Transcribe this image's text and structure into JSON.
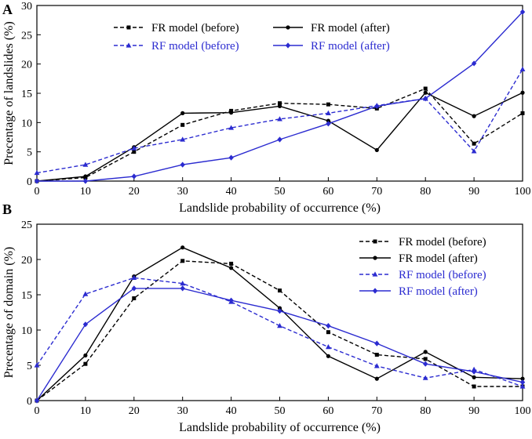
{
  "chart_data": [
    {
      "type": "line",
      "panel_label": "A",
      "title": "",
      "xlabel": "Landslide probability of occurrence (%)",
      "ylabel": "Precentage of landslides (%)",
      "xlim": [
        0,
        100
      ],
      "ylim": [
        0,
        30
      ],
      "xticks": [
        0,
        10,
        20,
        30,
        40,
        50,
        60,
        70,
        80,
        90,
        100
      ],
      "yticks": [
        0,
        5,
        10,
        15,
        20,
        25,
        30
      ],
      "grid": false,
      "legend_position": "top-center",
      "series": [
        {
          "name": "FR model (before)",
          "color": "#000000",
          "dashed": true,
          "marker": "square",
          "x": [
            0,
            10,
            20,
            30,
            40,
            50,
            60,
            70,
            80,
            90,
            100
          ],
          "values": [
            0,
            0.6,
            5.0,
            9.6,
            12.0,
            13.3,
            13.1,
            12.4,
            15.8,
            6.4,
            11.6
          ]
        },
        {
          "name": "FR model (after)",
          "color": "#000000",
          "dashed": false,
          "marker": "circle",
          "x": [
            0,
            10,
            20,
            30,
            40,
            50,
            60,
            70,
            80,
            90,
            100
          ],
          "values": [
            0,
            0.8,
            5.8,
            11.6,
            11.7,
            12.8,
            10.3,
            5.3,
            15.1,
            11.1,
            15.1
          ]
        },
        {
          "name": "RF model (before)",
          "color": "#2b2bd0",
          "dashed": true,
          "marker": "triangle",
          "x": [
            0,
            10,
            20,
            30,
            40,
            50,
            60,
            70,
            80,
            90,
            100
          ],
          "values": [
            1.4,
            2.8,
            5.6,
            7.1,
            9.1,
            10.6,
            11.6,
            12.9,
            14.1,
            5.1,
            19.1
          ]
        },
        {
          "name": "RF model (after)",
          "color": "#2b2bd0",
          "dashed": false,
          "marker": "diamond",
          "x": [
            0,
            10,
            20,
            30,
            40,
            50,
            60,
            70,
            80,
            90,
            100
          ],
          "values": [
            0,
            0,
            0.8,
            2.8,
            4.0,
            7.1,
            9.8,
            12.8,
            14.1,
            20.1,
            28.9
          ]
        }
      ]
    },
    {
      "type": "line",
      "panel_label": "B",
      "title": "",
      "xlabel": "Landslide probability of occurrence (%)",
      "ylabel": "Precentage of domain (%)",
      "xlim": [
        0,
        100
      ],
      "ylim": [
        0,
        25
      ],
      "xticks": [
        0,
        10,
        20,
        30,
        40,
        50,
        60,
        70,
        80,
        90,
        100
      ],
      "yticks": [
        0,
        5,
        10,
        15,
        20,
        25
      ],
      "grid": false,
      "legend_position": "top-right",
      "series": [
        {
          "name": "FR model (before)",
          "color": "#000000",
          "dashed": true,
          "marker": "square",
          "x": [
            0,
            10,
            20,
            30,
            40,
            50,
            60,
            70,
            80,
            90,
            100
          ],
          "values": [
            0,
            5.2,
            14.5,
            19.8,
            19.4,
            15.6,
            9.7,
            6.5,
            5.9,
            2.0,
            2.0
          ]
        },
        {
          "name": "FR model (after)",
          "color": "#000000",
          "dashed": false,
          "marker": "circle",
          "x": [
            0,
            10,
            20,
            30,
            40,
            50,
            60,
            70,
            80,
            90,
            100
          ],
          "values": [
            0,
            6.4,
            17.6,
            21.7,
            18.8,
            13.1,
            6.3,
            3.1,
            6.9,
            3.3,
            3.1
          ]
        },
        {
          "name": "RF model (before)",
          "color": "#2b2bd0",
          "dashed": true,
          "marker": "triangle",
          "x": [
            0,
            10,
            20,
            30,
            40,
            50,
            60,
            70,
            80,
            90,
            100
          ],
          "values": [
            5.0,
            15.1,
            17.4,
            16.6,
            14.0,
            10.6,
            7.6,
            4.9,
            3.2,
            4.4,
            2.0
          ]
        },
        {
          "name": "RF model (after)",
          "color": "#2b2bd0",
          "dashed": false,
          "marker": "diamond",
          "x": [
            0,
            10,
            20,
            30,
            40,
            50,
            60,
            70,
            80,
            90,
            100
          ],
          "values": [
            0,
            10.8,
            15.9,
            15.9,
            14.2,
            12.7,
            10.6,
            8.1,
            5.2,
            4.1,
            2.6
          ]
        }
      ]
    }
  ]
}
